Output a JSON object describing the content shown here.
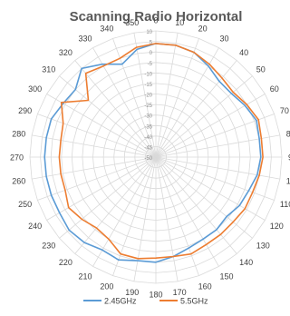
{
  "chart_data": {
    "type": "radar",
    "title": "Scanning Radio Horizontal",
    "angle_labels": [
      "0",
      "10",
      "20",
      "30",
      "40",
      "50",
      "60",
      "70",
      "80",
      "90",
      "100",
      "110",
      "120",
      "130",
      "140",
      "150",
      "160",
      "170",
      "180",
      "190",
      "200",
      "210",
      "220",
      "230",
      "240",
      "250",
      "260",
      "270",
      "280",
      "290",
      "300",
      "310",
      "320",
      "330",
      "340",
      "350"
    ],
    "radial_labels": [
      "10",
      "5",
      "0",
      "-5",
      "-10",
      "-15",
      "-20",
      "-25",
      "-30",
      "-35",
      "-40",
      "-45",
      "-50"
    ],
    "rlim": [
      -50,
      10
    ],
    "legend_position": "bottom",
    "series": [
      {
        "name": "2.45GHz",
        "color": "#5b9bd5",
        "values": [
          4,
          4,
          3,
          0,
          -3,
          -3,
          -1,
          1,
          0,
          0,
          -1,
          -3,
          -4,
          -6,
          -5,
          -5,
          -4,
          -2,
          0,
          0,
          2,
          1,
          3,
          4,
          3,
          3,
          3,
          3,
          3,
          3,
          1,
          0,
          5,
          1,
          -3,
          2
        ]
      },
      {
        "name": "5.5GHz",
        "color": "#ed7d31",
        "values": [
          4,
          4,
          3,
          1,
          -1,
          -2,
          0,
          2,
          1,
          1,
          0,
          -1,
          -1,
          -2,
          -2,
          -2,
          -1,
          -2,
          -2,
          -1,
          -1,
          -5,
          -6,
          -4,
          -2,
          -4,
          -4,
          -4,
          -4,
          -3,
          2,
          -8,
          2,
          0,
          0,
          3
        ]
      }
    ]
  }
}
